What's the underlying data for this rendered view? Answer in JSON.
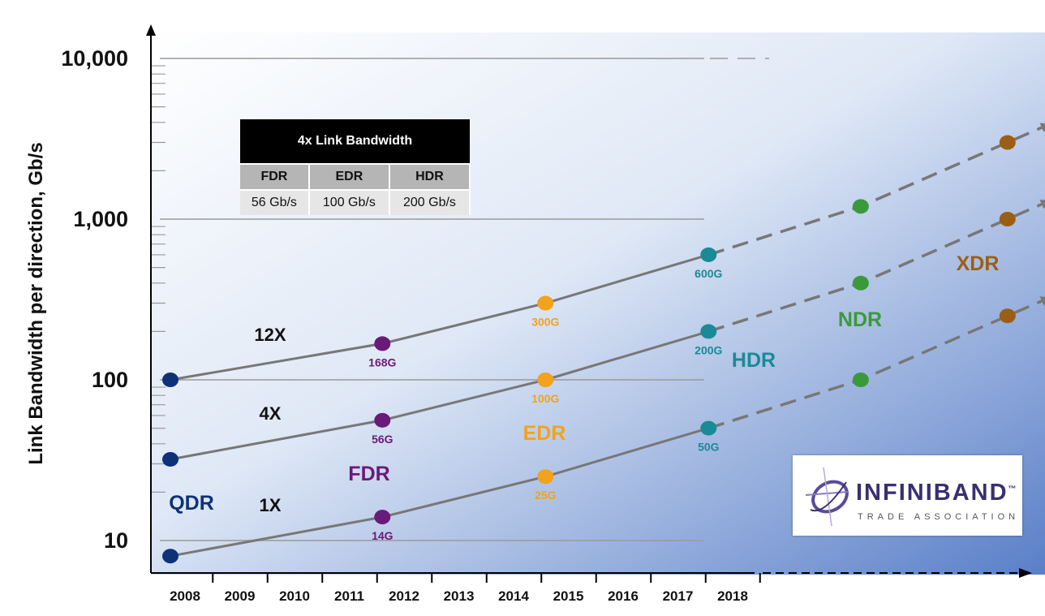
{
  "chart_data": {
    "type": "line",
    "ylabel": "Link Bandwidth per direction, Gb/s",
    "xlabel": "",
    "yscale": "log",
    "ylim": [
      8,
      10000
    ],
    "y_ticks": [
      {
        "value": 10,
        "label": "10"
      },
      {
        "value": 100,
        "label": "100"
      },
      {
        "value": 1000,
        "label": "1,000"
      },
      {
        "value": 10000,
        "label": "10,000"
      }
    ],
    "x_categories": [
      "2008",
      "2009",
      "2010",
      "2011",
      "2012",
      "2013",
      "2014",
      "2015",
      "2016",
      "2017",
      "2018"
    ],
    "series": [
      {
        "name": "12X",
        "color": "#777777",
        "points": [
          {
            "x": 2007.9,
            "y": 100,
            "label": "",
            "color": "#0d3278"
          },
          {
            "x": 2011.8,
            "y": 168,
            "label": "168G",
            "color": "#6a1a78"
          },
          {
            "x": 2014.8,
            "y": 300,
            "label": "300G",
            "color": "#f2a21c"
          },
          {
            "x": 2017.8,
            "y": 600,
            "label": "600G",
            "color": "#1a8a96"
          },
          {
            "x": 2020.6,
            "y": 1200,
            "label": "",
            "color": "#3a9a3a"
          },
          {
            "x": 2023.3,
            "y": 3000,
            "label": "",
            "color": "#9a5f14"
          }
        ],
        "projected_from_index": 3
      },
      {
        "name": "4X",
        "color": "#777777",
        "points": [
          {
            "x": 2007.9,
            "y": 32,
            "label": "",
            "color": "#0d3278"
          },
          {
            "x": 2011.8,
            "y": 56,
            "label": "56G",
            "color": "#6a1a78"
          },
          {
            "x": 2014.8,
            "y": 100,
            "label": "100G",
            "color": "#f2a21c"
          },
          {
            "x": 2017.8,
            "y": 200,
            "label": "200G",
            "color": "#1a8a96"
          },
          {
            "x": 2020.6,
            "y": 400,
            "label": "",
            "color": "#3a9a3a"
          },
          {
            "x": 2023.3,
            "y": 1000,
            "label": "",
            "color": "#9a5f14"
          }
        ],
        "projected_from_index": 3
      },
      {
        "name": "1X",
        "color": "#777777",
        "points": [
          {
            "x": 2007.9,
            "y": 8,
            "label": "",
            "color": "#0d3278"
          },
          {
            "x": 2011.8,
            "y": 14,
            "label": "14G",
            "color": "#6a1a78"
          },
          {
            "x": 2014.8,
            "y": 25,
            "label": "25G",
            "color": "#f2a21c"
          },
          {
            "x": 2017.8,
            "y": 50,
            "label": "50G",
            "color": "#1a8a96"
          },
          {
            "x": 2020.6,
            "y": 100,
            "label": "",
            "color": "#3a9a3a"
          },
          {
            "x": 2023.3,
            "y": 250,
            "label": "",
            "color": "#9a5f14"
          }
        ],
        "projected_from_index": 3
      }
    ],
    "generations": [
      {
        "name": "QDR",
        "color": "#0d3278"
      },
      {
        "name": "FDR",
        "color": "#6a1a78"
      },
      {
        "name": "EDR",
        "color": "#f2a21c"
      },
      {
        "name": "HDR",
        "color": "#1a8a96"
      },
      {
        "name": "NDR",
        "color": "#3a9a3a"
      },
      {
        "name": "XDR",
        "color": "#9a5f14"
      }
    ],
    "grid": true
  },
  "table": {
    "title": "4x Link Bandwidth",
    "headers": [
      "FDR",
      "EDR",
      "HDR"
    ],
    "values": [
      "56 Gb/s",
      "100 Gb/s",
      "200 Gb/s"
    ]
  },
  "logo": {
    "brand": "INFINIBAND",
    "tm": "™",
    "subtitle": "TRADE ASSOCIATION"
  }
}
